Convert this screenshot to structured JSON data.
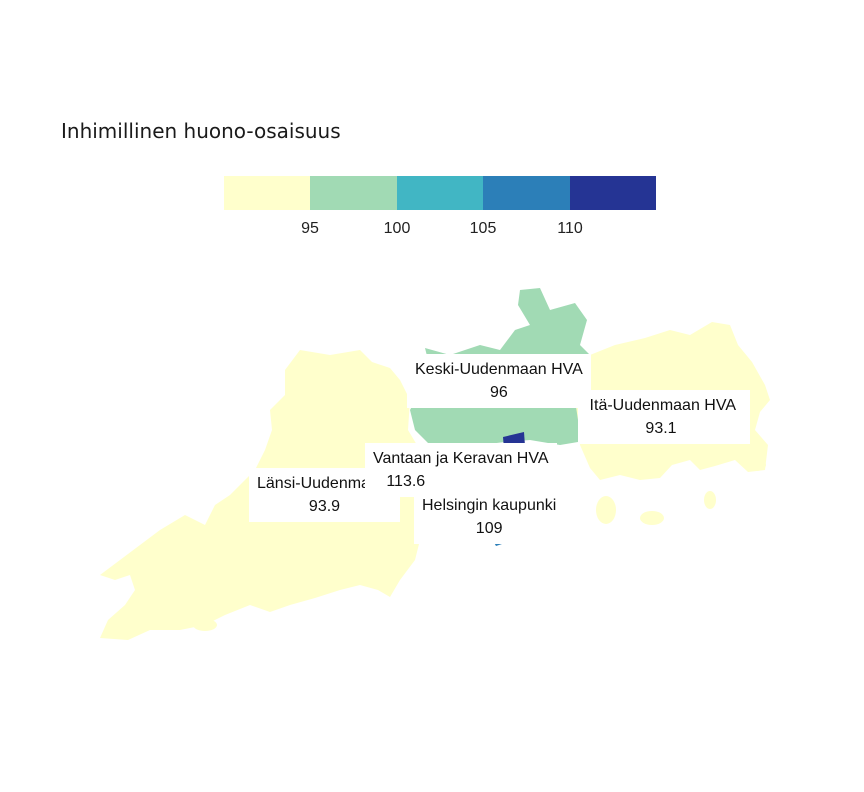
{
  "map": {
    "title": "Inhimillinen huono-osaisuus",
    "legend": {
      "colors": [
        "#ffffcc",
        "#a1dab4",
        "#41b6c4",
        "#2c7fb8",
        "#253494"
      ],
      "ticks": [
        "95",
        "100",
        "105",
        "110"
      ]
    },
    "regions": [
      {
        "id": "keski",
        "name": "Keski-Uudenmaan HVA",
        "value": "96",
        "color": "#a1dab4"
      },
      {
        "id": "ita",
        "name": "Itä-Uudenmaan HVA",
        "value": "93.1",
        "color": "#ffffcc"
      },
      {
        "id": "lansi",
        "name": "Länsi-Uudenmaan HVA",
        "value": "93.9",
        "color": "#ffffcc"
      },
      {
        "id": "vantaa",
        "name": "Vantaan ja Keravan HVA",
        "value": "113.6",
        "color": "#253494"
      },
      {
        "id": "helsinki",
        "name": "Helsingin kaupunki",
        "value": "109",
        "color": "#2c7fb8"
      }
    ]
  }
}
